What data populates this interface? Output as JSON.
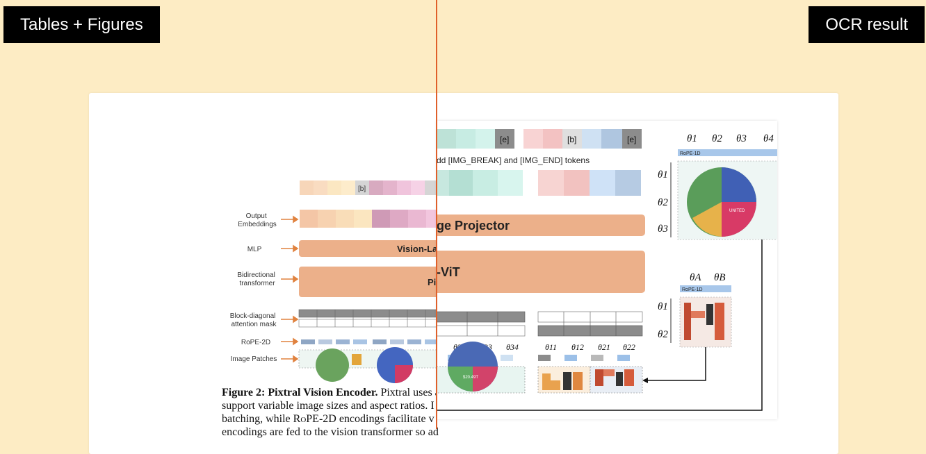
{
  "overlay": {
    "left_label": "Tables + Figures",
    "right_label": "OCR result"
  },
  "figure": {
    "row_labels": [
      "Output\nEmbeddings",
      "MLP",
      "Bidirectional\ntransformer",
      "Block-diagonal\nattention mask",
      "RoPE-2D",
      "Image Patches"
    ],
    "mlp_label_left": "Vision-La",
    "transformer_label_left": "Pi",
    "projector_label_right": "ge Projector",
    "vit_label_right": "-ViT",
    "token_note": "dd [IMG_BREAK] and [IMG_END] tokens",
    "token_b": "[b]",
    "token_e": "[e]",
    "pie_center": "UNITED\nSTATES\n$20.49T\n23.69%",
    "thetas_top": [
      "θ1",
      "θ2",
      "θ3",
      "θ4"
    ],
    "thetas_side": [
      "θ1",
      "θ2",
      "θ3"
    ],
    "thetas_small_top": [
      "θA",
      "θB"
    ],
    "thetas_small_side": [
      "θ1",
      "θ2"
    ],
    "rope_1d": "RoPE-1D",
    "theta_row_right_a": [
      "θ32",
      "θ33",
      "θ34"
    ],
    "theta_row_right_b": [
      "θ11",
      "θ12",
      "θ21",
      "θ22"
    ]
  },
  "caption": {
    "bold": "Figure 2: Pixtral Vision Encoder.",
    "line1": " Pixtral uses a",
    "line2": "support variable image sizes and aspect ratios. I",
    "line3_pre": "batching, while ",
    "line3_sc": "RoPE",
    "line3_post": "-2D encodings facilitate v",
    "line4": "encodings are fed to the vision transformer so ad"
  },
  "colors": {
    "background": "#fdecc4",
    "divider": "#e0602a",
    "orange_block": "#ecb08a",
    "arrow": "#e0823f"
  }
}
